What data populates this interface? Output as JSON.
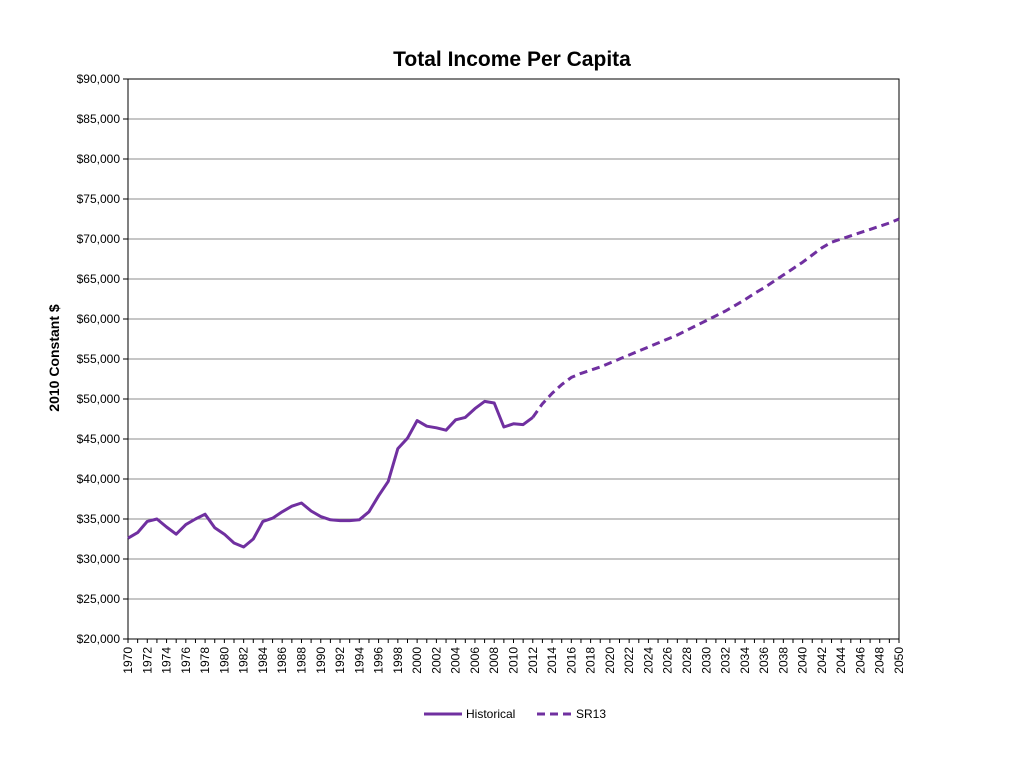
{
  "chart_data": {
    "type": "line",
    "title": "Total Income Per Capita",
    "xlabel": "",
    "ylabel": "2010 Constant $",
    "xlim": [
      1970,
      2050
    ],
    "ylim": [
      20000,
      90000
    ],
    "y_ticks": [
      "$20,000",
      "$25,000",
      "$30,000",
      "$35,000",
      "$40,000",
      "$45,000",
      "$50,000",
      "$55,000",
      "$60,000",
      "$65,000",
      "$70,000",
      "$75,000",
      "$80,000",
      "$85,000",
      "$90,000"
    ],
    "y_tick_values": [
      20000,
      25000,
      30000,
      35000,
      40000,
      45000,
      50000,
      55000,
      60000,
      65000,
      70000,
      75000,
      80000,
      85000,
      90000
    ],
    "x_ticks": [
      "1970",
      "1972",
      "1974",
      "1976",
      "1978",
      "1980",
      "1982",
      "1984",
      "1986",
      "1988",
      "1990",
      "1992",
      "1994",
      "1996",
      "1998",
      "2000",
      "2002",
      "2004",
      "2006",
      "2008",
      "2010",
      "2012",
      "2014",
      "2016",
      "2018",
      "2020",
      "2022",
      "2024",
      "2026",
      "2028",
      "2030",
      "2032",
      "2034",
      "2036",
      "2038",
      "2040",
      "2042",
      "2044",
      "2046",
      "2048",
      "2050"
    ],
    "grid": true,
    "legend_position": "bottom",
    "series": [
      {
        "name": "Historical",
        "style": "solid",
        "color": "#7030A0",
        "x": [
          1970,
          1971,
          1972,
          1973,
          1974,
          1975,
          1976,
          1977,
          1978,
          1979,
          1980,
          1981,
          1982,
          1983,
          1984,
          1985,
          1986,
          1987,
          1988,
          1989,
          1990,
          1991,
          1992,
          1993,
          1994,
          1995,
          1996,
          1997,
          1998,
          1999,
          2000,
          2001,
          2002,
          2003,
          2004,
          2005,
          2006,
          2007,
          2008,
          2009,
          2010,
          2011,
          2012
        ],
        "y": [
          32600,
          33300,
          34700,
          35000,
          34000,
          33100,
          34300,
          35000,
          35600,
          33900,
          33100,
          32000,
          31500,
          32500,
          34700,
          35100,
          35900,
          36600,
          37000,
          36000,
          35300,
          34900,
          34800,
          34800,
          34900,
          35900,
          37900,
          39700,
          43800,
          45100,
          47300,
          46600,
          46400,
          46100,
          47400,
          47700,
          48800,
          49700,
          49500,
          46500,
          46900,
          46800,
          47700
        ]
      },
      {
        "name": "SR13",
        "style": "dashed",
        "color": "#7030A0",
        "x": [
          2012,
          2013,
          2014,
          2015,
          2016,
          2017,
          2018,
          2019,
          2020,
          2021,
          2022,
          2023,
          2024,
          2025,
          2026,
          2027,
          2028,
          2029,
          2030,
          2031,
          2032,
          2033,
          2034,
          2035,
          2036,
          2037,
          2038,
          2039,
          2040,
          2041,
          2042,
          2043,
          2044,
          2045,
          2046,
          2047,
          2048,
          2049,
          2050
        ],
        "y": [
          47700,
          49400,
          50700,
          51800,
          52700,
          53200,
          53600,
          54000,
          54500,
          55000,
          55500,
          56000,
          56500,
          57000,
          57500,
          58000,
          58600,
          59200,
          59800,
          60400,
          61000,
          61700,
          62400,
          63200,
          63900,
          64700,
          65500,
          66300,
          67100,
          68000,
          68900,
          69600,
          70000,
          70400,
          70800,
          71200,
          71600,
          72000,
          72500
        ]
      }
    ]
  }
}
